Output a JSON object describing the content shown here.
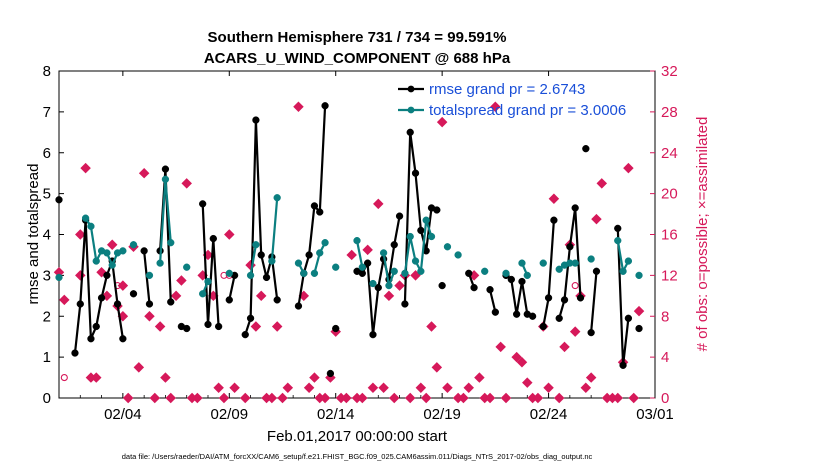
{
  "colors": {
    "rmse": "#000000",
    "spread": "#0b7f80",
    "obs": "#d6195a",
    "legend_text": "#1a4fd8",
    "axis": "#000000"
  },
  "chart_data": {
    "type": "line",
    "title": "Southern Hemisphere 731 / 734 = 99.591%",
    "subtitle": "ACARS_U_WIND_COMPONENT @ 688 hPa",
    "xlabel": "Feb.01,2017 00:00:00 start",
    "ylabel": "rmse and totalspread",
    "y2label": "# of obs: o=possible; ×=assimilated",
    "footnote": "data file: /Users/raeder/DAI/ATM_forcXX/CAM6_setup/f.e21.FHIST_BGC.f09_025.CAM6assim.011/Diags_NTrS_2017-02/obs_diag_output.nc",
    "xlim": [
      0,
      28
    ],
    "ylim": [
      0,
      8
    ],
    "y2lim": [
      0,
      32
    ],
    "x_ticks": [
      3,
      8,
      13,
      18,
      23,
      28
    ],
    "x_tick_labels": [
      "02/04",
      "02/09",
      "02/14",
      "02/19",
      "02/24",
      "03/01"
    ],
    "y_ticks": [
      0,
      1,
      2,
      3,
      4,
      5,
      6,
      7,
      8
    ],
    "y_tick_labels": [
      "0",
      "1",
      "2",
      "3",
      "4",
      "5",
      "6",
      "7",
      "8"
    ],
    "y2_ticks": [
      0,
      4,
      8,
      12,
      16,
      20,
      24,
      28,
      32
    ],
    "y2_tick_labels": [
      "0",
      "4",
      "8",
      "12",
      "16",
      "20",
      "24",
      "28",
      "32"
    ],
    "legend_position": "top-right",
    "series": [
      {
        "name": "rmse grand pr = 2.6743",
        "segments": [
          [
            [
              0.0,
              4.85
            ]
          ],
          [
            [
              0.75,
              1.1
            ],
            [
              1.0,
              2.3
            ],
            [
              1.25,
              4.35
            ],
            [
              1.5,
              1.45
            ],
            [
              1.75,
              1.75
            ],
            [
              2.0,
              2.45
            ],
            [
              2.25,
              3.0
            ],
            [
              2.5,
              3.35
            ],
            [
              2.75,
              2.3
            ],
            [
              3.0,
              1.45
            ]
          ],
          [
            [
              3.5,
              2.55
            ]
          ],
          [
            [
              4.0,
              3.6
            ],
            [
              4.25,
              2.3
            ]
          ],
          [
            [
              4.75,
              3.6
            ],
            [
              5.0,
              5.6
            ],
            [
              5.25,
              2.35
            ]
          ],
          [
            [
              5.75,
              1.75
            ],
            [
              6.0,
              1.7
            ]
          ],
          [
            [
              6.75,
              4.75
            ],
            [
              7.0,
              1.8
            ],
            [
              7.25,
              3.9
            ],
            [
              7.5,
              1.75
            ]
          ],
          [
            [
              8.0,
              2.4
            ],
            [
              8.25,
              3.0
            ]
          ],
          [
            [
              8.75,
              1.55
            ],
            [
              9.0,
              1.95
            ],
            [
              9.25,
              6.8
            ],
            [
              9.5,
              3.5
            ],
            [
              9.75,
              2.95
            ],
            [
              10.0,
              3.45
            ],
            [
              10.25,
              2.4
            ]
          ],
          [
            [
              11.25,
              2.25
            ],
            [
              11.5,
              3.05
            ],
            [
              11.75,
              3.5
            ],
            [
              12.0,
              4.7
            ],
            [
              12.25,
              4.55
            ],
            [
              12.5,
              7.15
            ]
          ],
          [
            [
              12.75,
              0.6
            ]
          ],
          [
            [
              13.0,
              1.7
            ]
          ],
          [
            [
              14.0,
              3.1
            ],
            [
              14.25,
              3.05
            ],
            [
              14.5,
              3.3
            ],
            [
              14.75,
              1.55
            ],
            [
              15.0,
              2.7
            ],
            [
              15.25,
              3.4
            ],
            [
              15.5,
              2.9
            ],
            [
              15.75,
              3.75
            ],
            [
              16.0,
              4.45
            ]
          ],
          [
            [
              16.25,
              2.3
            ],
            [
              16.5,
              6.5
            ],
            [
              16.75,
              5.5
            ],
            [
              17.0,
              4.1
            ],
            [
              17.25,
              3.6
            ],
            [
              17.5,
              4.65
            ],
            [
              17.75,
              4.6
            ]
          ],
          [
            [
              18.0,
              2.75
            ]
          ],
          [
            [
              19.25,
              3.05
            ],
            [
              19.5,
              2.7
            ]
          ],
          [
            [
              20.25,
              2.65
            ],
            [
              20.5,
              2.1
            ]
          ],
          [
            [
              21.0,
              3.0
            ],
            [
              21.25,
              2.9
            ],
            [
              21.5,
              2.05
            ],
            [
              21.75,
              2.85
            ],
            [
              22.0,
              2.05
            ],
            [
              22.25,
              2.0
            ]
          ],
          [
            [
              22.75,
              1.75
            ],
            [
              23.0,
              2.45
            ],
            [
              23.25,
              4.35
            ]
          ],
          [
            [
              23.5,
              1.95
            ],
            [
              23.75,
              2.4
            ],
            [
              24.0,
              3.7
            ],
            [
              24.25,
              4.65
            ],
            [
              24.5,
              2.45
            ]
          ],
          [
            [
              24.75,
              6.1
            ]
          ],
          [
            [
              25.0,
              1.6
            ],
            [
              25.25,
              3.1
            ]
          ],
          [
            [
              26.25,
              4.15
            ],
            [
              26.5,
              0.8
            ],
            [
              26.75,
              1.95
            ]
          ],
          [
            [
              27.25,
              1.7
            ]
          ]
        ]
      },
      {
        "name": "totalspread grand pr = 3.0006",
        "segments": [
          [
            [
              0.0,
              2.95
            ]
          ],
          [
            [
              1.25,
              4.4
            ],
            [
              1.5,
              4.2
            ],
            [
              1.75,
              3.35
            ],
            [
              2.0,
              3.6
            ],
            [
              2.25,
              3.55
            ],
            [
              2.5,
              3.25
            ],
            [
              2.75,
              3.55
            ],
            [
              3.0,
              3.6
            ]
          ],
          [
            [
              3.5,
              3.75
            ]
          ],
          [
            [
              4.25,
              3.0
            ]
          ],
          [
            [
              4.75,
              3.3
            ],
            [
              5.0,
              5.35
            ],
            [
              5.25,
              3.8
            ]
          ],
          [
            [
              6.0,
              3.2
            ]
          ],
          [
            [
              6.75,
              2.55
            ],
            [
              7.0,
              2.85
            ]
          ],
          [
            [
              8.0,
              3.05
            ]
          ],
          [
            [
              9.0,
              3.0
            ],
            [
              9.25,
              3.75
            ]
          ],
          [
            [
              10.0,
              3.35
            ],
            [
              10.25,
              4.9
            ]
          ],
          [
            [
              11.25,
              3.3
            ],
            [
              11.5,
              3.05
            ]
          ],
          [
            [
              12.0,
              3.05
            ],
            [
              12.25,
              3.55
            ],
            [
              12.5,
              3.8
            ]
          ],
          [
            [
              13.0,
              3.2
            ]
          ],
          [
            [
              14.0,
              3.85
            ],
            [
              14.25,
              3.2
            ]
          ],
          [
            [
              14.75,
              2.8
            ]
          ],
          [
            [
              15.25,
              3.55
            ],
            [
              15.5,
              2.75
            ],
            [
              15.75,
              3.1
            ]
          ],
          [
            [
              16.25,
              3.05
            ],
            [
              16.5,
              3.95
            ],
            [
              16.75,
              3.35
            ],
            [
              17.0,
              3.1
            ],
            [
              17.25,
              4.35
            ],
            [
              17.5,
              3.95
            ]
          ],
          [
            [
              18.25,
              3.7
            ]
          ],
          [
            [
              18.75,
              3.5
            ]
          ],
          [
            [
              20.0,
              3.1
            ]
          ],
          [
            [
              21.0,
              3.05
            ]
          ],
          [
            [
              21.75,
              3.3
            ],
            [
              22.0,
              3.0
            ]
          ],
          [
            [
              22.75,
              3.3
            ]
          ],
          [
            [
              23.5,
              3.15
            ],
            [
              23.75,
              3.25
            ],
            [
              24.0,
              3.3
            ],
            [
              24.25,
              3.3
            ]
          ],
          [
            [
              25.0,
              3.4
            ]
          ],
          [
            [
              26.25,
              3.85
            ],
            [
              26.5,
              3.1
            ],
            [
              26.75,
              3.35
            ]
          ],
          [
            [
              27.25,
              3.0
            ]
          ]
        ]
      }
    ],
    "obs_assimilated": [
      [
        0.0,
        12.3
      ],
      [
        0.25,
        9.6
      ],
      [
        1.0,
        16.0
      ],
      [
        1.0,
        12.0
      ],
      [
        1.25,
        22.5
      ],
      [
        1.5,
        2.0
      ],
      [
        1.75,
        2.0
      ],
      [
        2.0,
        12.3
      ],
      [
        2.25,
        10.0
      ],
      [
        2.5,
        15.0
      ],
      [
        2.75,
        9.0
      ],
      [
        3.0,
        11.0
      ],
      [
        3.0,
        8.0
      ],
      [
        3.25,
        0.0
      ],
      [
        3.5,
        14.8
      ],
      [
        3.75,
        3.0
      ],
      [
        4.0,
        22.0
      ],
      [
        4.25,
        8.0
      ],
      [
        4.5,
        0.0
      ],
      [
        4.75,
        7.0
      ],
      [
        5.0,
        2.0
      ],
      [
        5.25,
        0.0
      ],
      [
        5.5,
        10.0
      ],
      [
        5.75,
        11.5
      ],
      [
        6.0,
        21.0
      ],
      [
        6.25,
        0.0
      ],
      [
        6.5,
        0.0
      ],
      [
        6.75,
        12.0
      ],
      [
        7.0,
        14.0
      ],
      [
        7.25,
        10.0
      ],
      [
        7.5,
        1.0
      ],
      [
        7.75,
        0.0
      ],
      [
        8.0,
        16.0
      ],
      [
        8.25,
        1.0
      ],
      [
        8.75,
        0.0
      ],
      [
        9.0,
        13.0
      ],
      [
        9.25,
        7.0
      ],
      [
        9.5,
        10.0
      ],
      [
        9.75,
        0.0
      ],
      [
        10.0,
        0.0
      ],
      [
        10.25,
        7.0
      ],
      [
        10.5,
        0.0
      ],
      [
        10.75,
        1.0
      ],
      [
        11.25,
        28.5
      ],
      [
        11.5,
        10.0
      ],
      [
        11.75,
        1.0
      ],
      [
        12.0,
        2.0
      ],
      [
        12.25,
        0.0
      ],
      [
        12.5,
        0.0
      ],
      [
        12.75,
        2.0
      ],
      [
        13.0,
        6.5
      ],
      [
        13.25,
        0.0
      ],
      [
        13.5,
        0.0
      ],
      [
        13.75,
        14.0
      ],
      [
        14.0,
        0.0
      ],
      [
        14.25,
        0.0
      ],
      [
        14.5,
        14.5
      ],
      [
        14.75,
        1.0
      ],
      [
        15.0,
        19.0
      ],
      [
        15.25,
        1.0
      ],
      [
        15.5,
        10.0
      ],
      [
        15.75,
        0.0
      ],
      [
        16.0,
        11.0
      ],
      [
        16.25,
        12.0
      ],
      [
        16.5,
        0.0
      ],
      [
        16.75,
        12.0
      ],
      [
        17.0,
        1.0
      ],
      [
        17.25,
        0.0
      ],
      [
        17.5,
        7.0
      ],
      [
        17.75,
        3.0
      ],
      [
        18.0,
        27.0
      ],
      [
        18.25,
        1.0
      ],
      [
        18.75,
        0.0
      ],
      [
        19.0,
        0.0
      ],
      [
        19.25,
        1.0
      ],
      [
        19.5,
        12.0
      ],
      [
        19.75,
        2.0
      ],
      [
        20.0,
        0.0
      ],
      [
        20.25,
        0.0
      ],
      [
        20.5,
        28.5
      ],
      [
        20.75,
        5.0
      ],
      [
        21.0,
        0.0
      ],
      [
        21.5,
        4.0
      ],
      [
        21.75,
        3.5
      ],
      [
        22.0,
        1.5
      ],
      [
        22.25,
        0.0
      ],
      [
        22.5,
        0.0
      ],
      [
        22.75,
        7.0
      ],
      [
        23.0,
        1.0
      ],
      [
        23.25,
        19.5
      ],
      [
        23.5,
        0.0
      ],
      [
        23.75,
        5.0
      ],
      [
        24.0,
        15.0
      ],
      [
        24.25,
        6.5
      ],
      [
        24.5,
        10.0
      ],
      [
        24.75,
        1.0
      ],
      [
        25.0,
        2.0
      ],
      [
        25.25,
        17.5
      ],
      [
        25.5,
        21.0
      ],
      [
        25.75,
        0.0
      ],
      [
        26.0,
        0.0
      ],
      [
        26.25,
        0.0
      ],
      [
        26.5,
        3.5
      ],
      [
        26.75,
        22.5
      ],
      [
        27.0,
        0.0
      ],
      [
        27.25,
        8.5
      ]
    ],
    "obs_possible": [
      [
        0.25,
        2.0
      ],
      [
        2.75,
        11.0
      ],
      [
        7.75,
        12.0
      ],
      [
        8.0,
        12.0
      ],
      [
        24.25,
        11.0
      ]
    ]
  }
}
